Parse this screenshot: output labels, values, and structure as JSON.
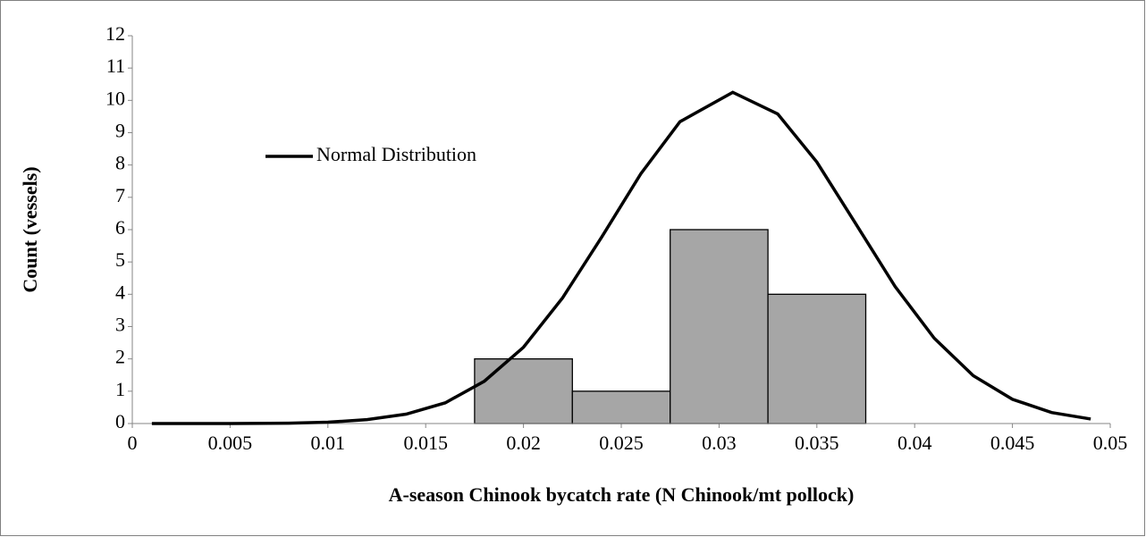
{
  "chart_data": {
    "type": "histogram",
    "x_label": "A-season Chinook bycatch rate (N Chinook/mt pollock)",
    "y_label": "Count (vessels)",
    "bins": [
      0.0175,
      0.0225,
      0.0275,
      0.0325,
      0.0375
    ],
    "values": [
      2,
      1,
      6,
      4
    ],
    "color": "#a6a6a6",
    "series": [
      {
        "name": "Normal Distribution",
        "color": "#000000",
        "x": [
          0.001,
          0.005,
          0.008,
          0.01,
          0.012,
          0.014,
          0.016,
          0.018,
          0.02,
          0.022,
          0.024,
          0.026,
          0.028,
          0.0307,
          0.033,
          0.035,
          0.037,
          0.039,
          0.041,
          0.043,
          0.045,
          0.047,
          0.049
        ],
        "values": [
          0,
          0,
          0.01,
          0.04,
          0.12,
          0.29,
          0.64,
          1.31,
          2.36,
          3.89,
          5.77,
          7.73,
          9.34,
          10.25,
          9.58,
          8.09,
          6.17,
          4.24,
          2.64,
          1.48,
          0.75,
          0.34,
          0.14
        ]
      }
    ],
    "xlim": [
      0,
      0.05
    ],
    "xticks": [
      0,
      0.005,
      0.01,
      0.015,
      0.02,
      0.025,
      0.03,
      0.035,
      0.04,
      0.045,
      0.05
    ],
    "ylim": [
      0,
      12
    ],
    "yticks": [
      0,
      1,
      2,
      3,
      4,
      5,
      6,
      7,
      8,
      9,
      10,
      11,
      12
    ],
    "legend": "upper-left"
  }
}
